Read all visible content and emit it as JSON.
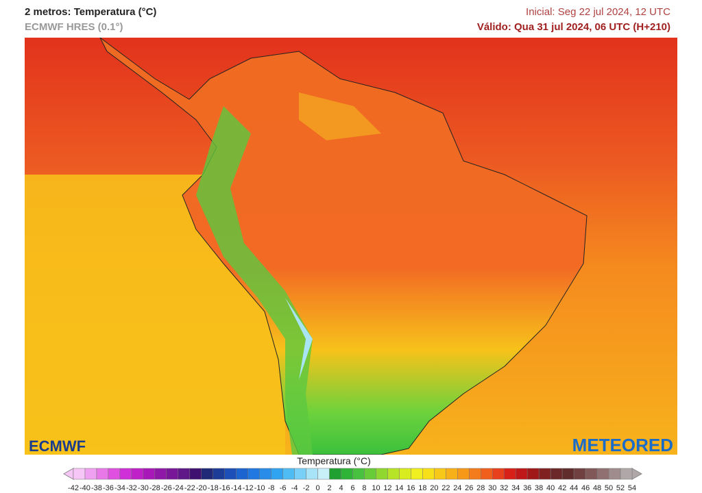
{
  "header": {
    "title": "2 metros: Temperatura (°C)",
    "model": "ECMWF HRES (0.1°)",
    "initial": "Inicial: Seg 22 jul 2024, 12 UTC",
    "valid": "Válido: Qua 31 jul 2024, 06 UTC (H+210)"
  },
  "legend": {
    "title": "Temperatura (°C)",
    "ticks": [
      -42,
      -40,
      -38,
      -36,
      -34,
      -32,
      -30,
      -28,
      -26,
      -24,
      -22,
      -20,
      -18,
      -16,
      -14,
      -12,
      -10,
      -8,
      -6,
      -4,
      -2,
      0,
      2,
      4,
      6,
      8,
      10,
      12,
      14,
      16,
      18,
      20,
      22,
      24,
      26,
      28,
      30,
      32,
      34,
      36,
      38,
      40,
      42,
      44,
      46,
      48,
      50,
      52,
      54
    ],
    "colors": [
      "#f6c6f6",
      "#f0a0f0",
      "#e878e8",
      "#e050e0",
      "#d030d8",
      "#c020c8",
      "#a818b8",
      "#9018a8",
      "#781898",
      "#601888",
      "#401070",
      "#202878",
      "#1c3c98",
      "#1c50b8",
      "#1c64d0",
      "#2078e0",
      "#288ce8",
      "#30a4f0",
      "#50bcf4",
      "#78d0f8",
      "#a8e4f8",
      "#c8f0f8",
      "#20a030",
      "#30b438",
      "#48c040",
      "#68cc38",
      "#90d830",
      "#b8e428",
      "#d8ec20",
      "#f0f020",
      "#f8e018",
      "#f8c818",
      "#f8b018",
      "#f89818",
      "#f47c1c",
      "#f0601c",
      "#e8401c",
      "#d82018",
      "#c01818",
      "#a01818",
      "#802020",
      "#6c2828",
      "#602c2c",
      "#704040",
      "#805858",
      "#907070",
      "#a08c8c",
      "#b0a8a8"
    ]
  },
  "logos": {
    "left": "ECMWF",
    "right": "METEORED"
  }
}
